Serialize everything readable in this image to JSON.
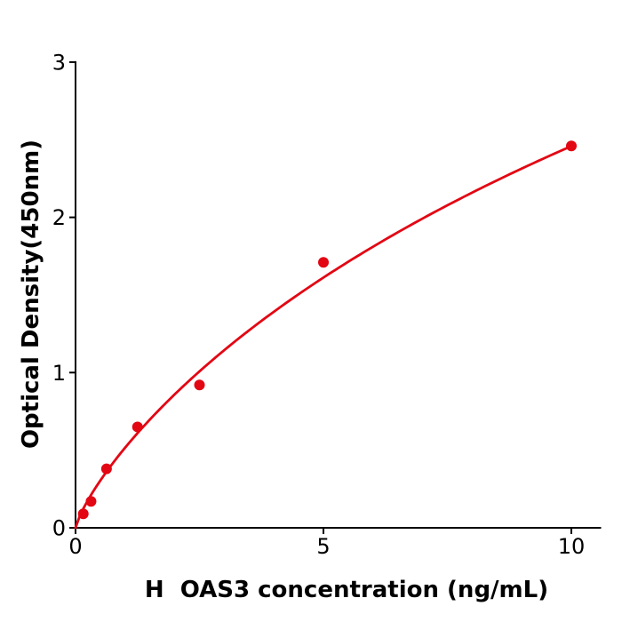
{
  "chart_data": {
    "type": "scatter",
    "title": "",
    "xlabel": "H  OAS3 concentration (ng/mL)",
    "ylabel": "Optical Density(450nm)",
    "x_ticks": [
      0,
      5,
      10
    ],
    "y_ticks": [
      0,
      1,
      2,
      3
    ],
    "xlim": [
      0,
      10.6
    ],
    "ylim": [
      0,
      3
    ],
    "grid": false,
    "legend": null,
    "points": [
      {
        "x": 0.156,
        "y": 0.09
      },
      {
        "x": 0.3125,
        "y": 0.17
      },
      {
        "x": 0.625,
        "y": 0.38
      },
      {
        "x": 1.25,
        "y": 0.65
      },
      {
        "x": 2.5,
        "y": 0.92
      },
      {
        "x": 5,
        "y": 1.71
      },
      {
        "x": 10,
        "y": 2.46
      }
    ],
    "fit_curve": {
      "model": "y = top * x^hill / (k + x^hill)",
      "top": 8.44,
      "k": 15.35,
      "hill": 0.8,
      "x_start": 0,
      "x_end": 10
    },
    "colors": {
      "point_color": "#e30613",
      "curve_color": "#e30613",
      "axis_color": "#000000",
      "background": "#ffffff"
    },
    "style": {
      "point_radius": 6,
      "curve_width": 2.8,
      "axis_width": 2,
      "tick_length": 7
    }
  }
}
